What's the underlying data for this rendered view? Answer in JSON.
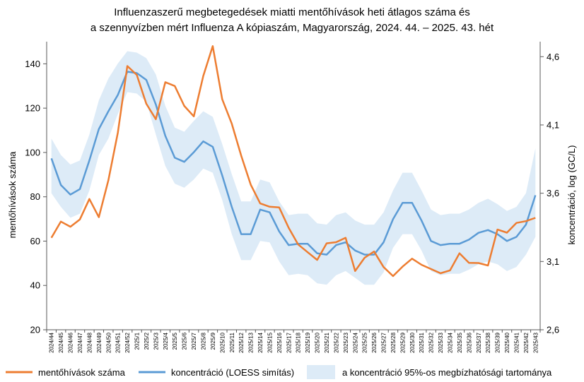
{
  "chart_data": {
    "type": "line",
    "title": [
      "Influenzaszerű megbetegedések miatti mentőhívások heti átlagos száma és",
      "a szennyvízben mért Influenza A kópiaszám, Magyarország, 2024. 44. – 2025. 43. hét"
    ],
    "ylabel": "mentőhívások száma",
    "y2label": "koncentráció, log (GC/L)",
    "ylim": [
      20,
      150
    ],
    "yticks": [
      20,
      40,
      60,
      80,
      100,
      120,
      140
    ],
    "y2lim": [
      2.6,
      4.71
    ],
    "y2ticks": [
      "2,6",
      "3,1",
      "3,6",
      "4,1",
      "4,6"
    ],
    "y2tick_values": [
      2.6,
      3.1,
      3.6,
      4.1,
      4.6
    ],
    "categories": [
      "2024/44",
      "2024/45",
      "2024/46",
      "2024/47",
      "2024/48",
      "2024/49",
      "2024/50",
      "2024/51",
      "2024/52",
      "2025/1",
      "2025/2",
      "2025/3",
      "2025/4",
      "2025/5",
      "2025/6",
      "2025/7",
      "2025/8",
      "2025/9",
      "2025/10",
      "2025/11",
      "2025/12",
      "2025/13",
      "2025/14",
      "2025/15",
      "2025/16",
      "2025/17",
      "2025/18",
      "2025/19",
      "2025/20",
      "2025/21",
      "2025/22",
      "2025/23",
      "2025/24",
      "2025/25",
      "2025/26",
      "2025/27",
      "2025/28",
      "2025/29",
      "2025/30",
      "2025/31",
      "2025/32",
      "2025/33",
      "2025/34",
      "2025/35",
      "2025/36",
      "2025/37",
      "2025/38",
      "2025/39",
      "2025/40",
      "2025/41",
      "2025/42",
      "2025/43"
    ],
    "series": [
      {
        "name": "mentőhívások száma",
        "axis": "left",
        "color": "#ED7D31",
        "values": [
          61.5,
          68.8,
          66.5,
          69.8,
          79,
          70.8,
          87.5,
          109,
          139,
          135,
          122,
          115,
          131.7,
          130,
          121,
          116.3,
          134.5,
          148,
          124,
          113,
          98.5,
          85.5,
          77,
          75.5,
          75.2,
          66,
          58.5,
          55,
          51.5,
          59,
          59.5,
          61.5,
          46.5,
          52.5,
          55.3,
          48.3,
          44.2,
          48.5,
          52.1,
          49.3,
          47.4,
          45.5,
          46.8,
          54.5,
          50.2,
          50.1,
          49,
          65.2,
          63.8,
          68.2,
          69,
          70.5
        ]
      },
      {
        "name": "koncentráció (LOESS simítás)",
        "axis": "right",
        "color": "#5B9BD5",
        "values": [
          3.855,
          3.66,
          3.59,
          3.63,
          3.84,
          4.07,
          4.2,
          4.32,
          4.49,
          4.48,
          4.43,
          4.25,
          4.02,
          3.86,
          3.83,
          3.9,
          3.98,
          3.94,
          3.73,
          3.5,
          3.3,
          3.3,
          3.48,
          3.46,
          3.32,
          3.22,
          3.23,
          3.23,
          3.16,
          3.15,
          3.22,
          3.24,
          3.18,
          3.15,
          3.15,
          3.24,
          3.41,
          3.53,
          3.53,
          3.4,
          3.25,
          3.22,
          3.23,
          3.23,
          3.26,
          3.31,
          3.33,
          3.3,
          3.25,
          3.28,
          3.37,
          3.585
        ]
      },
      {
        "name": "a koncentráció 95%-os megbízhatósági tartománya",
        "axis": "right",
        "color": "#DDEBF7",
        "lower": [
          3.6,
          3.5,
          3.42,
          3.45,
          3.62,
          3.88,
          4.0,
          4.18,
          4.34,
          4.33,
          4.27,
          4.03,
          3.8,
          3.67,
          3.64,
          3.7,
          3.78,
          3.75,
          3.55,
          3.3,
          3.11,
          3.11,
          3.25,
          3.24,
          3.1,
          3.0,
          3.01,
          3.0,
          2.94,
          2.93,
          3.0,
          3.03,
          2.98,
          2.93,
          2.93,
          3.02,
          3.2,
          3.3,
          3.3,
          3.18,
          3.03,
          3.0,
          3.01,
          3.01,
          3.04,
          3.08,
          3.1,
          3.08,
          3.03,
          3.06,
          3.15,
          3.28
        ],
        "upper": [
          4.0,
          3.88,
          3.81,
          3.84,
          4.03,
          4.28,
          4.44,
          4.55,
          4.64,
          4.63,
          4.59,
          4.47,
          4.24,
          4.08,
          4.05,
          4.13,
          4.2,
          4.16,
          3.96,
          3.74,
          3.54,
          3.54,
          3.7,
          3.68,
          3.54,
          3.44,
          3.45,
          3.45,
          3.38,
          3.37,
          3.44,
          3.46,
          3.4,
          3.37,
          3.37,
          3.46,
          3.62,
          3.75,
          3.75,
          3.62,
          3.48,
          3.44,
          3.45,
          3.45,
          3.48,
          3.53,
          3.56,
          3.52,
          3.47,
          3.5,
          3.6,
          3.93
        ]
      }
    ],
    "legend": {
      "position": "bottom",
      "items": [
        {
          "label": "mentőhívások száma",
          "kind": "line",
          "color": "#ED7D31"
        },
        {
          "label": "koncentráció (LOESS simítás)",
          "kind": "line",
          "color": "#5B9BD5"
        },
        {
          "label": "a koncentráció 95%-os megbízhatósági tartománya",
          "kind": "area",
          "color": "#DDEBF7"
        }
      ]
    }
  }
}
